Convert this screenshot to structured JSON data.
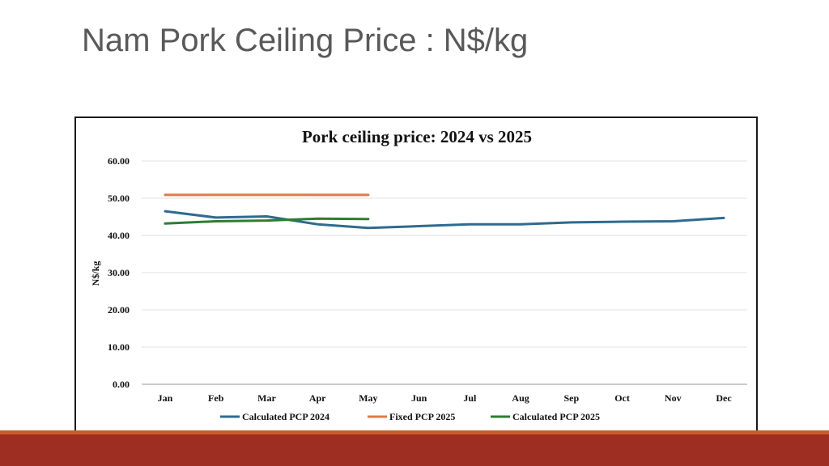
{
  "slide": {
    "title": "Nam Pork Ceiling Price : N$/kg"
  },
  "colors": {
    "band": "#9e2d22",
    "band_accent": "#c95b2e"
  },
  "chart_data": {
    "type": "line",
    "title": "Pork ceiling price: 2024 vs 2025",
    "xlabel": "",
    "ylabel": "N$/kg",
    "categories": [
      "Jan",
      "Feb",
      "Mar",
      "Apr",
      "May",
      "Jun",
      "Jul",
      "Aug",
      "Sep",
      "Oct",
      "Nov",
      "Dec"
    ],
    "ylim": [
      0,
      60
    ],
    "yticks": [
      "0.00",
      "10.00",
      "20.00",
      "30.00",
      "40.00",
      "50.00",
      "60.00"
    ],
    "grid": true,
    "legend_position": "bottom",
    "series": [
      {
        "name": "Calculated PCP 2024",
        "color": "#2e6b8e",
        "values": [
          46.5,
          44.8,
          45.1,
          43.0,
          42.0,
          42.5,
          43.0,
          43.0,
          43.5,
          43.7,
          43.8,
          44.7
        ]
      },
      {
        "name": "Fixed PCP 2025",
        "color": "#e07b45",
        "values": [
          50.9,
          50.9,
          50.9,
          50.9,
          50.9,
          null,
          null,
          null,
          null,
          null,
          null,
          null
        ]
      },
      {
        "name": "Calculated PCP 2025",
        "color": "#2f7d32",
        "values": [
          43.2,
          43.8,
          44.0,
          44.5,
          44.4,
          null,
          null,
          null,
          null,
          null,
          null,
          null
        ]
      }
    ]
  }
}
